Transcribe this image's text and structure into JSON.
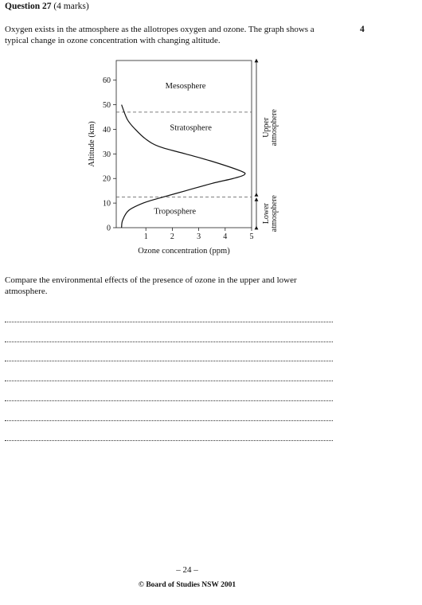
{
  "question": {
    "label": "Question 27",
    "marks_text": "(4 marks)",
    "marks_value": "4"
  },
  "intro_text": "Oxygen exists in the atmosphere as the allotropes oxygen and ozone. The graph shows a typical change in ozone concentration with changing altitude.",
  "prompt_text": "Compare the environmental effects of the presence of ozone in the upper and lower atmosphere.",
  "answer_lines": 7,
  "footer": {
    "page_number": "– 24 –",
    "copyright": "© Board of Studies NSW 2001"
  },
  "chart_data": {
    "type": "line",
    "xlabel": "Ozone concentration (ppm)",
    "ylabel": "Altitude (km)",
    "xlim": [
      0,
      5
    ],
    "ylim": [
      0,
      68
    ],
    "x_ticks": [
      1,
      2,
      3,
      4,
      5
    ],
    "y_ticks": [
      0,
      10,
      20,
      30,
      40,
      50,
      60
    ],
    "grid": false,
    "series": [
      {
        "points": [
          {
            "x": 0.08,
            "y": 0
          },
          {
            "x": 0.12,
            "y": 3
          },
          {
            "x": 0.35,
            "y": 7
          },
          {
            "x": 0.9,
            "y": 10
          },
          {
            "x": 1.5,
            "y": 12
          },
          {
            "x": 2.5,
            "y": 15
          },
          {
            "x": 3.5,
            "y": 18
          },
          {
            "x": 4.3,
            "y": 20
          },
          {
            "x": 4.72,
            "y": 21.5
          },
          {
            "x": 4.6,
            "y": 23
          },
          {
            "x": 3.5,
            "y": 27
          },
          {
            "x": 2.5,
            "y": 30
          },
          {
            "x": 1.5,
            "y": 33
          },
          {
            "x": 1.0,
            "y": 36
          },
          {
            "x": 0.6,
            "y": 40
          },
          {
            "x": 0.3,
            "y": 44
          },
          {
            "x": 0.08,
            "y": 50
          }
        ]
      }
    ],
    "boundaries": [
      {
        "y": 47,
        "style": "dashed"
      },
      {
        "y": 12.5,
        "style": "dashed"
      }
    ],
    "layer_labels": [
      {
        "text": "Mesosphere",
        "x": 2.5,
        "y": 58
      },
      {
        "text": "Stratosphere",
        "x": 2.7,
        "y": 41
      },
      {
        "text": "Troposphere",
        "x": 2.1,
        "y": 7
      }
    ],
    "bracket_labels": [
      {
        "text": "Upper atmosphere",
        "from_y": 12.5,
        "to_y": 68
      },
      {
        "text": "Lower atmosphere",
        "from_y": 0,
        "to_y": 12.5
      }
    ]
  }
}
